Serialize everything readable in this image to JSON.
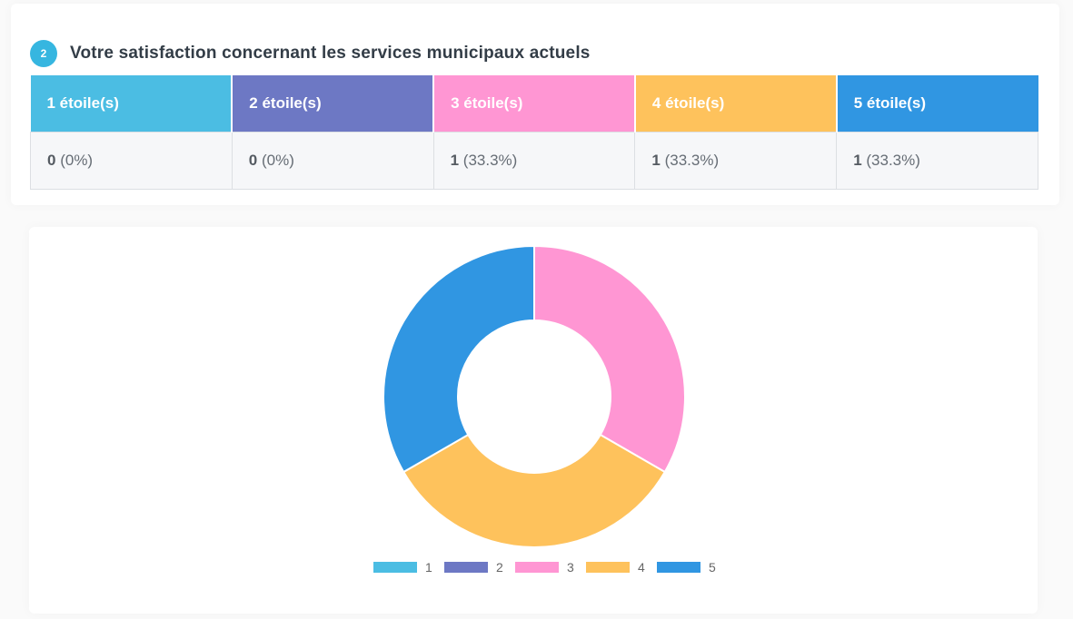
{
  "question": {
    "number": "2",
    "title": "Votre satisfaction concernant les services municipaux actuels"
  },
  "table": {
    "columns": [
      {
        "label": "1 étoile(s)",
        "count": "0",
        "percent": "(0%)",
        "color": "#4bbde3"
      },
      {
        "label": "2 étoile(s)",
        "count": "0",
        "percent": "(0%)",
        "color": "#6d78c4"
      },
      {
        "label": "3 étoile(s)",
        "count": "1",
        "percent": "(33.3%)",
        "color": "#ff96d3"
      },
      {
        "label": "4 étoile(s)",
        "count": "1",
        "percent": "(33.3%)",
        "color": "#fec25c"
      },
      {
        "label": "5 étoile(s)",
        "count": "1",
        "percent": "(33.3%)",
        "color": "#3096e2"
      }
    ]
  },
  "chart_data": {
    "type": "pie",
    "variant": "doughnut",
    "categories": [
      "1",
      "2",
      "3",
      "4",
      "5"
    ],
    "values": [
      0,
      0,
      1,
      1,
      1
    ],
    "colors": [
      "#4bbde3",
      "#6d78c4",
      "#ff96d3",
      "#fec25c",
      "#3096e2"
    ],
    "legend_position": "bottom",
    "title": ""
  }
}
